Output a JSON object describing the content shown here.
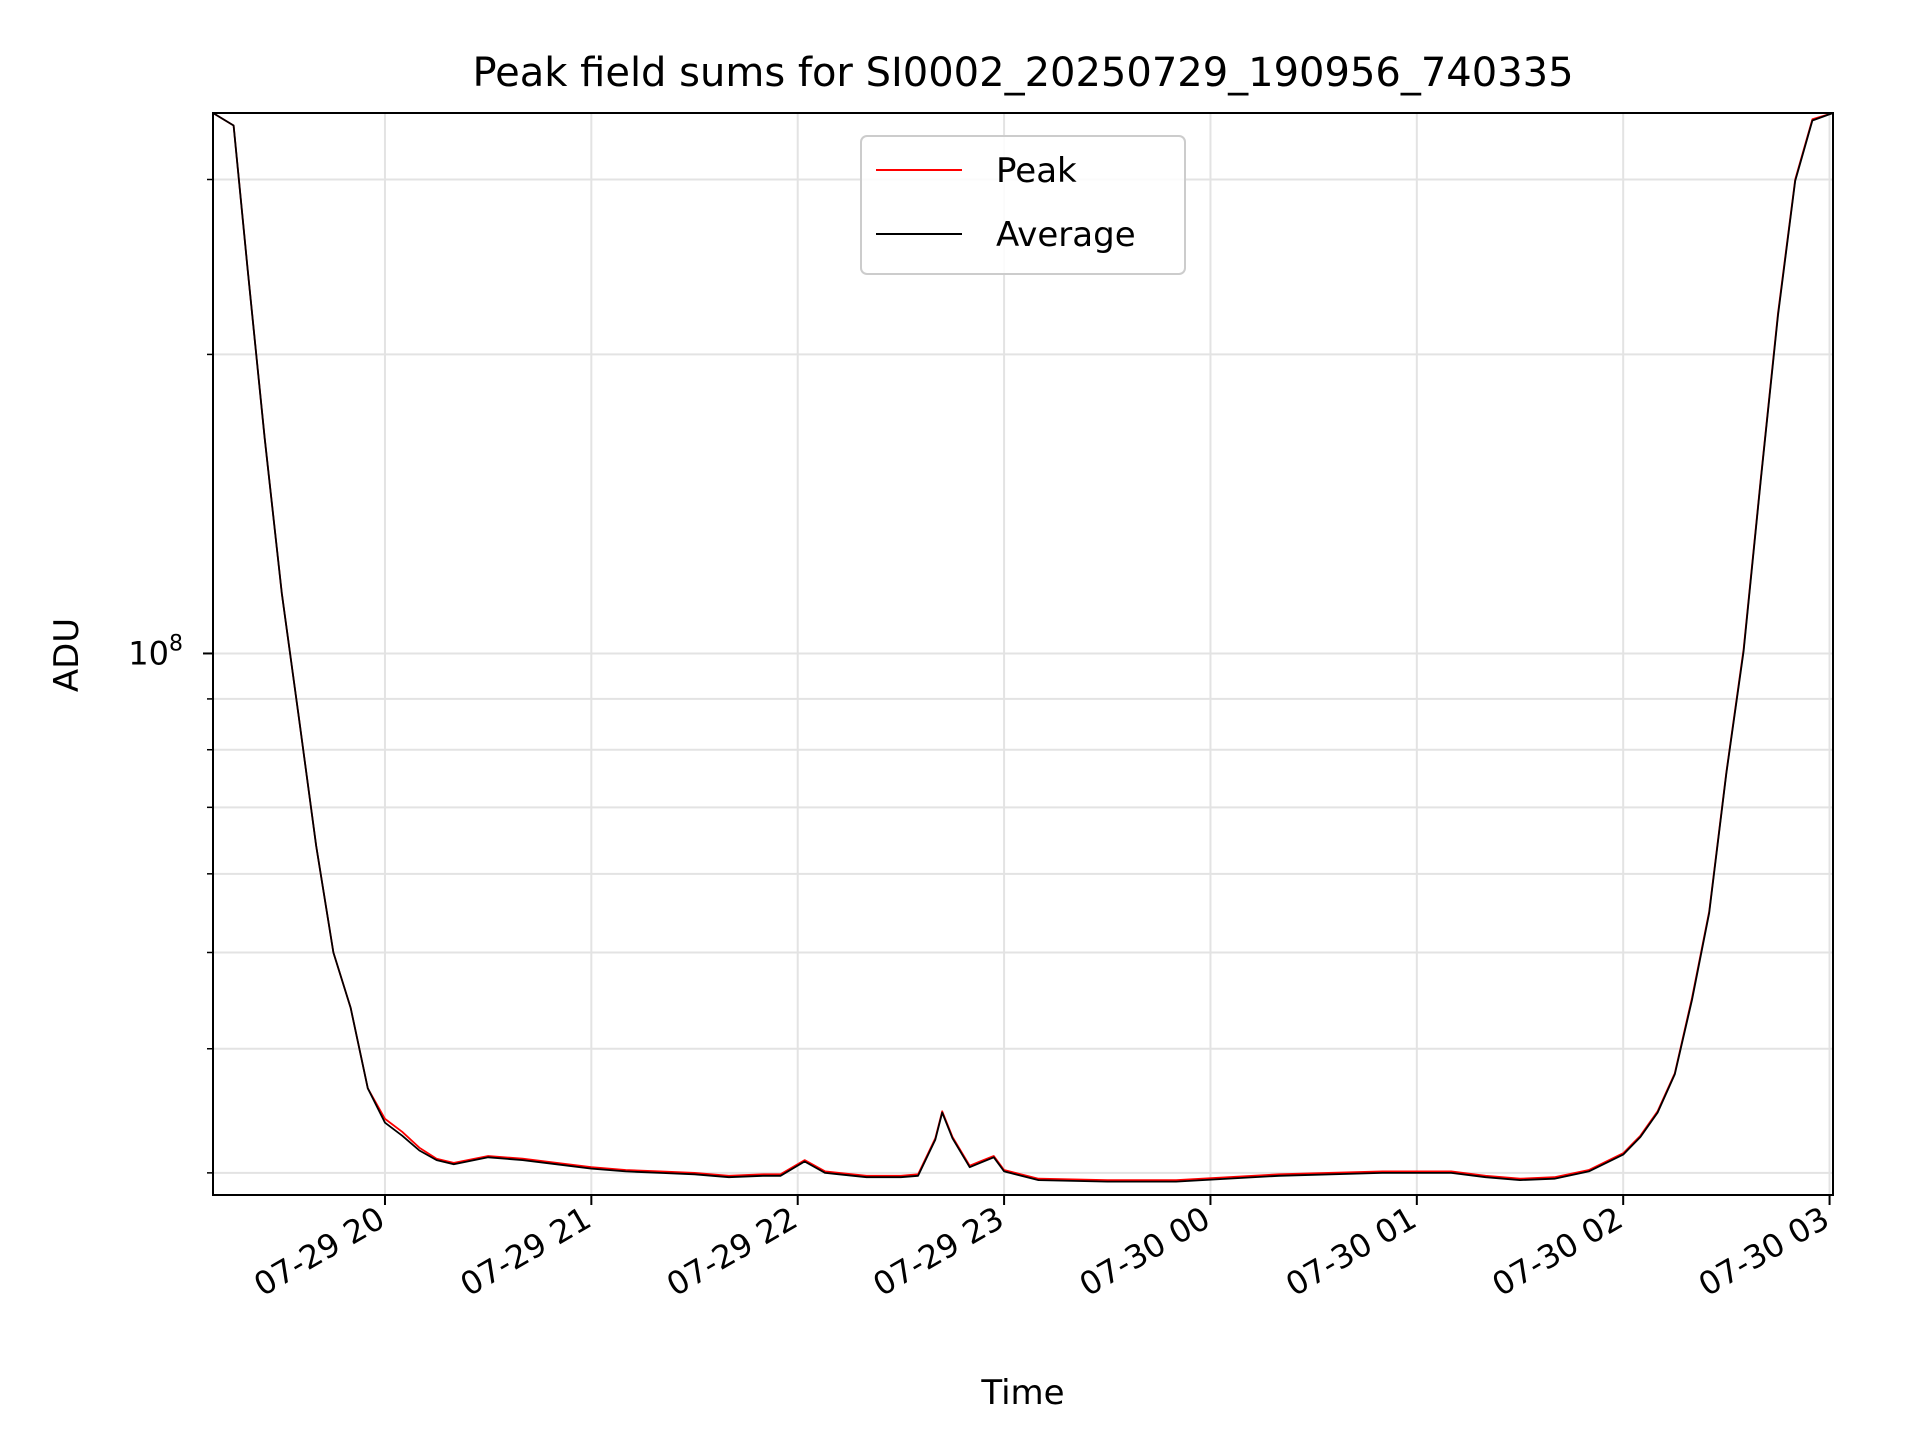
{
  "chart_data": {
    "type": "line",
    "title": "Peak field sums for SI0002_20250729_190956_740335",
    "xlabel": "Time",
    "ylabel": "ADU",
    "yscale": "log",
    "xlim": [
      "2025-07-29 19:10",
      "2025-07-30 03:01"
    ],
    "ylim": [
      28500000,
      350000000
    ],
    "x_ticks": [
      "07-29 20",
      "07-29 21",
      "07-29 22",
      "07-29 23",
      "07-30 00",
      "07-30 01",
      "07-30 02",
      "07-30 03"
    ],
    "y_major_ticks": [
      {
        "value": 100000000,
        "base": "10",
        "exp": "8"
      }
    ],
    "y_minor_ticks": [
      30000000,
      40000000,
      50000000,
      60000000,
      70000000,
      80000000,
      90000000,
      200000000,
      300000000
    ],
    "grid": true,
    "legend_position": "upper center",
    "x": [
      "2025-07-29 19:10",
      "2025-07-29 19:16",
      "2025-07-29 19:20",
      "2025-07-29 19:25",
      "2025-07-29 19:30",
      "2025-07-29 19:35",
      "2025-07-29 19:40",
      "2025-07-29 19:45",
      "2025-07-29 19:50",
      "2025-07-29 19:55",
      "2025-07-29 20:00",
      "2025-07-29 20:05",
      "2025-07-29 20:10",
      "2025-07-29 20:15",
      "2025-07-29 20:20",
      "2025-07-29 20:30",
      "2025-07-29 20:40",
      "2025-07-29 20:50",
      "2025-07-29 21:00",
      "2025-07-29 21:10",
      "2025-07-29 21:20",
      "2025-07-29 21:30",
      "2025-07-29 21:40",
      "2025-07-29 21:50",
      "2025-07-29 21:55",
      "2025-07-29 22:02",
      "2025-07-29 22:08",
      "2025-07-29 22:12",
      "2025-07-29 22:20",
      "2025-07-29 22:30",
      "2025-07-29 22:35",
      "2025-07-29 22:40",
      "2025-07-29 22:42",
      "2025-07-29 22:45",
      "2025-07-29 22:50",
      "2025-07-29 22:53",
      "2025-07-29 22:57",
      "2025-07-29 23:00",
      "2025-07-29 23:10",
      "2025-07-29 23:30",
      "2025-07-29 23:50",
      "2025-07-30 00:20",
      "2025-07-30 00:50",
      "2025-07-30 01:10",
      "2025-07-30 01:20",
      "2025-07-30 01:30",
      "2025-07-30 01:40",
      "2025-07-30 01:50",
      "2025-07-30 02:00",
      "2025-07-30 02:05",
      "2025-07-30 02:10",
      "2025-07-30 02:15",
      "2025-07-30 02:20",
      "2025-07-30 02:25",
      "2025-07-30 02:30",
      "2025-07-30 02:35",
      "2025-07-30 02:40",
      "2025-07-30 02:45",
      "2025-07-30 02:50",
      "2025-07-30 02:55",
      "2025-07-30 03:01"
    ],
    "series": [
      {
        "name": "Peak",
        "color": "#ff0000",
        "values": [
          350000000,
          340000000,
          245000000,
          165000000,
          115000000,
          86000000,
          64000000,
          50000000,
          44000000,
          36500000,
          34000000,
          33000000,
          31800000,
          31000000,
          30700000,
          31200000,
          31000000,
          30700000,
          30400000,
          30200000,
          30100000,
          30000000,
          29800000,
          29900000,
          29900000,
          30900000,
          30100000,
          30000000,
          29800000,
          29800000,
          29900000,
          32500000,
          34600000,
          32600000,
          30500000,
          30800000,
          31200000,
          30200000,
          29600000,
          29500000,
          29500000,
          29900000,
          30100000,
          30100000,
          29800000,
          29600000,
          29700000,
          30200000,
          31400000,
          32700000,
          34600000,
          37800000,
          45000000,
          55000000,
          76000000,
          101000000,
          150000000,
          220000000,
          300000000,
          345000000,
          350000000
        ]
      },
      {
        "name": "Average",
        "color": "#000000",
        "values": [
          350000000,
          340000000,
          245000000,
          165000000,
          115000000,
          86000000,
          64000000,
          50000000,
          44000000,
          36500000,
          33700000,
          32700000,
          31600000,
          30900000,
          30600000,
          31100000,
          30900000,
          30600000,
          30300000,
          30100000,
          30000000,
          29900000,
          29700000,
          29800000,
          29800000,
          30800000,
          30000000,
          29900000,
          29700000,
          29700000,
          29800000,
          32400000,
          34500000,
          32500000,
          30400000,
          30700000,
          31100000,
          30100000,
          29500000,
          29400000,
          29400000,
          29800000,
          30000000,
          30000000,
          29700000,
          29500000,
          29600000,
          30100000,
          31300000,
          32600000,
          34500000,
          37700000,
          44800000,
          54800000,
          75800000,
          100500000,
          149500000,
          219000000,
          299000000,
          344000000,
          350000000
        ]
      }
    ]
  },
  "legend": {
    "items": [
      {
        "label": "Peak",
        "color": "#ff0000"
      },
      {
        "label": "Average",
        "color": "#000000"
      }
    ]
  }
}
